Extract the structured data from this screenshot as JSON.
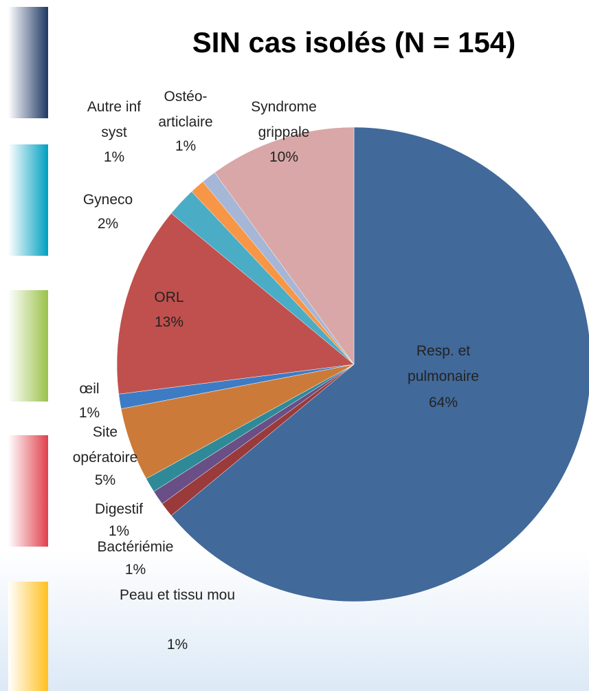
{
  "chart_data": {
    "type": "pie",
    "title": "SIN cas isolés (N = 154)",
    "categories": [
      "Resp. et pulmonaire",
      "Peau et tissu mou",
      "Bactériémie",
      "Digestif",
      "Site opératoire",
      "œil",
      "ORL",
      "Gyneco",
      "Ostéo-articlaire",
      "Autre inf syst",
      "Syndrome grippale"
    ],
    "values": [
      64,
      1,
      1,
      1,
      5,
      1,
      13,
      2,
      1,
      1,
      10
    ],
    "value_labels": [
      "64%",
      "1%",
      "1%",
      "1%",
      "5%",
      "1%",
      "13%",
      "2%",
      "1%",
      "1%",
      "10%"
    ],
    "colors": [
      "#41699a",
      "#9b3a3a",
      "#6a4f86",
      "#2f8a98",
      "#cc7a3a",
      "#3d7cc4",
      "#c0504d",
      "#4bacc6",
      "#f79646",
      "#a5b6d6",
      "#d9a7a7"
    ]
  }
}
